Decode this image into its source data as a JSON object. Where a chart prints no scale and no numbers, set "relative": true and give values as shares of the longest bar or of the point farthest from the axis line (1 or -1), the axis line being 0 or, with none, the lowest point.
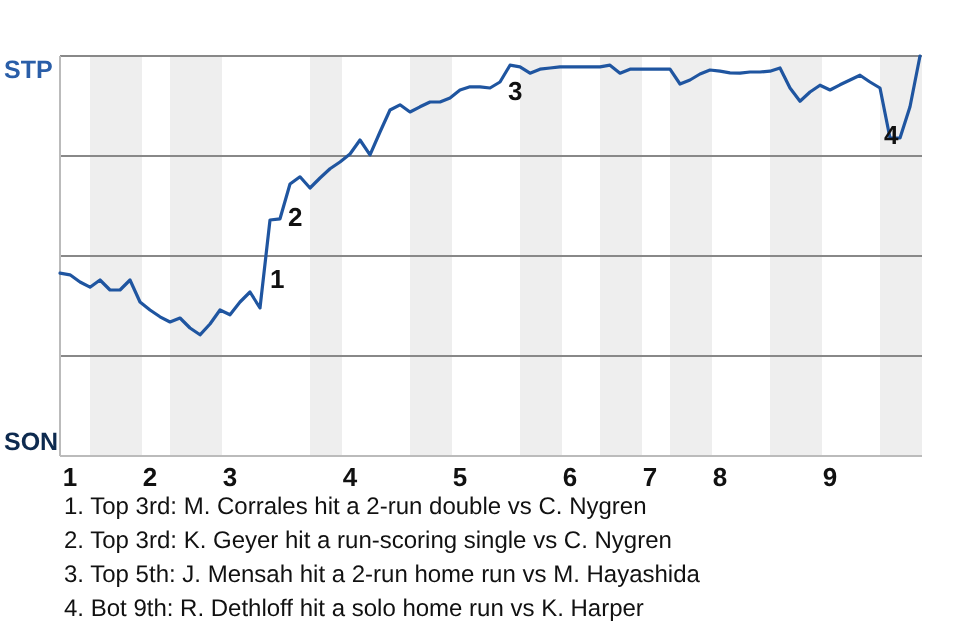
{
  "chart_data": {
    "type": "line",
    "relative": true,
    "categories": [
      null,
      "1",
      null,
      null,
      null,
      null,
      null,
      null,
      null,
      "2",
      null,
      null,
      null,
      null,
      null,
      null,
      null,
      "3",
      null,
      null,
      null,
      null,
      null,
      null,
      null,
      null,
      null,
      null,
      null,
      "4",
      null,
      null,
      null,
      null,
      null,
      null,
      null,
      null,
      null,
      null,
      "5",
      null,
      null,
      null,
      null,
      null,
      null,
      null,
      null,
      null,
      null,
      "6",
      null,
      null,
      null,
      null,
      null,
      null,
      null,
      "7",
      null,
      null,
      null,
      null,
      null,
      null,
      "8",
      null,
      null,
      null,
      null,
      null,
      null,
      null,
      null,
      null,
      null,
      "9",
      null,
      null,
      null,
      null,
      null,
      null,
      null,
      null,
      null
    ],
    "grid": "y",
    "marker": "none",
    "line_style": "solid",
    "series": [
      {
        "color": "#1f55a0",
        "values": [
          0.457,
          0.453,
          0.435,
          0.422,
          0.44,
          0.415,
          0.415,
          0.44,
          0.385,
          0.365,
          0.348,
          0.335,
          0.345,
          0.32,
          0.303,
          0.33,
          0.365,
          0.353,
          0.385,
          0.41,
          0.37,
          0.59,
          0.593,
          0.68,
          0.698,
          0.67,
          0.695,
          0.718,
          0.735,
          0.755,
          0.79,
          0.753,
          0.81,
          0.865,
          0.878,
          0.86,
          0.873,
          0.885,
          0.885,
          0.895,
          0.915,
          0.923,
          0.923,
          0.92,
          0.935,
          0.977,
          0.973,
          0.957,
          0.967,
          0.97,
          0.973,
          0.973,
          0.973,
          0.973,
          0.973,
          0.977,
          0.957,
          0.967,
          0.967,
          0.967,
          0.967,
          0.967,
          0.93,
          0.94,
          0.955,
          0.965,
          0.962,
          0.958,
          0.957,
          0.96,
          0.96,
          0.962,
          0.97,
          0.92,
          0.887,
          0.91,
          0.927,
          0.915,
          0.928,
          0.94,
          0.952,
          0.935,
          0.92,
          0.795,
          0.795,
          0.873,
          1
        ]
      }
    ],
    "annotations": [
      "STP",
      "SON",
      "1",
      "2",
      "3",
      "4",
      "1. Top 3rd: M. Corrales hit a 2-run double vs C. Nygren",
      "2. Top 3rd: K. Geyer hit a run-scoring single vs C. Nygren",
      "3. Top 5th: J. Mensah hit a 2-run home run vs M. Hayashida",
      "4. Bot 9th: R. Dethloff hit a solo home run vs K. Harper"
    ]
  }
}
